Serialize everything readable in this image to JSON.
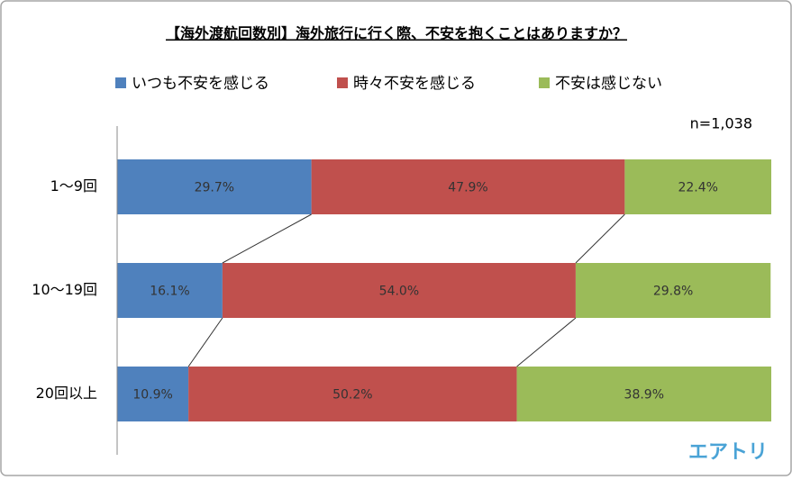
{
  "chart_data": {
    "type": "stacked-bar-horizontal",
    "title": "【海外渡航回数別】海外旅行に行く際、不安を抱くことはありますか？",
    "annotation": "n=1,038",
    "logo": "エアトリ",
    "categories": [
      "1〜9回",
      "10〜19回",
      "20回以上"
    ],
    "series": [
      {
        "name": "いつも不安を感じる",
        "color": "#4f81bd",
        "values": [
          29.7,
          16.1,
          10.9
        ],
        "value_labels": [
          "29.7%",
          "16.1%",
          "10.9%"
        ]
      },
      {
        "name": "時々不安を感じる",
        "color": "#c0504d",
        "values": [
          47.9,
          54.0,
          50.2
        ],
        "value_labels": [
          "47.9%",
          "54.0%",
          "50.2%"
        ]
      },
      {
        "name": "不安は感じない",
        "color": "#9bbb59",
        "values": [
          22.4,
          29.8,
          38.9
        ],
        "value_labels": [
          "22.4%",
          "29.8%",
          "38.9%"
        ]
      }
    ],
    "xlim": [
      0,
      100
    ],
    "legend": "top",
    "series_lines": true
  }
}
